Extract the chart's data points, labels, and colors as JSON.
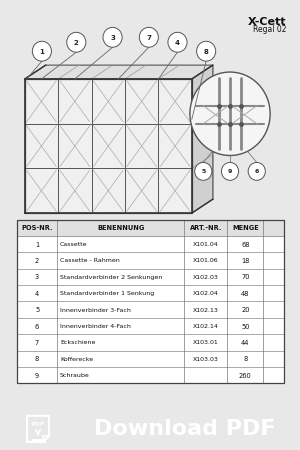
{
  "title": "X-Cett",
  "subtitle": "Regal 02",
  "bg_color": "#e8e8e8",
  "page_bg": "#ffffff",
  "bottom_bar_color": "#111111",
  "bottom_text": "Download PDF",
  "table_headers": [
    "POS-NR.",
    "BENENNUNG",
    "ART.-NR.",
    "MENGE"
  ],
  "table_rows": [
    [
      "1",
      "Cassette",
      "X101.04",
      "68"
    ],
    [
      "2",
      "Cassette - Rahmen",
      "X101.06",
      "18"
    ],
    [
      "3",
      "Standardverbinder 2 Senkungen",
      "X102.03",
      "70"
    ],
    [
      "4",
      "Standardverbinder 1 Senkung",
      "X102.04",
      "48"
    ],
    [
      "5",
      "Innenverbinder 3-Fach",
      "X102.13",
      "20"
    ],
    [
      "6",
      "Innenverbinder 4-Fach",
      "X102.14",
      "50"
    ],
    [
      "7",
      "Eckschiene",
      "X103.01",
      "44"
    ],
    [
      "8",
      "Kofferecke",
      "X103.03",
      "8"
    ],
    [
      "9",
      "Schraube",
      "",
      "260"
    ]
  ],
  "shelf_color_front": "#f0f0f0",
  "shelf_color_top": "#e0e0e0",
  "shelf_color_side": "#d0d0d0",
  "shelf_line_color": "#555555",
  "shelf_inner_color": "#cccccc",
  "border_color": "#888888",
  "text_color": "#111111"
}
